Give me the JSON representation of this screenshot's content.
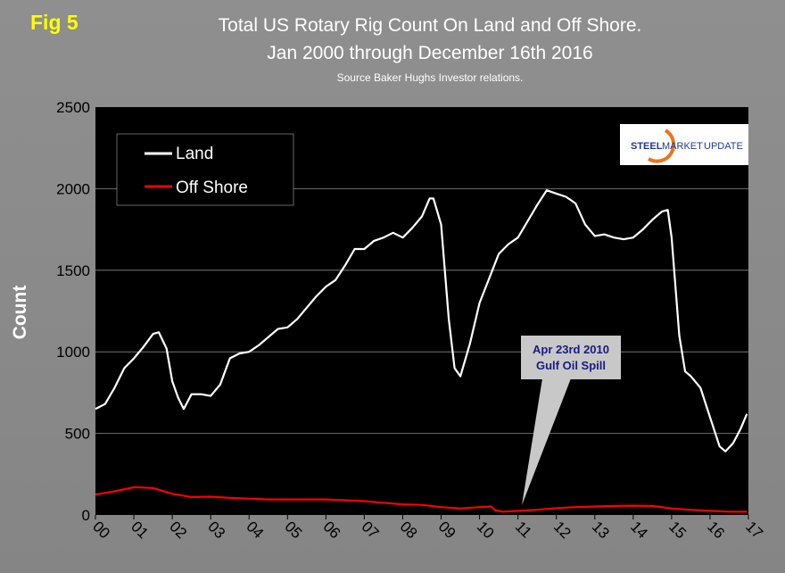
{
  "figure_label": "Fig 5",
  "chart_data": {
    "type": "line",
    "title": "Total US Rotary Rig Count On Land and Off Shore.",
    "subtitle": "Jan 2000 through December 16th 2016",
    "source": "Source Baker Hughs Investor relations.",
    "ylabel": "Count",
    "xlabel": "",
    "ylim": [
      0,
      2500
    ],
    "xlim": [
      2000,
      2017
    ],
    "yticks": [
      "0",
      "500",
      "1000",
      "1500",
      "2000",
      "2500"
    ],
    "xticks": [
      "00",
      "01",
      "02",
      "03",
      "04",
      "05",
      "06",
      "07",
      "08",
      "09",
      "10",
      "11",
      "12",
      "13",
      "14",
      "15",
      "16",
      "17"
    ],
    "grid": true,
    "legend": "top-left",
    "series": [
      {
        "name": "Land",
        "color": "#ffffff",
        "x": [
          2000.0,
          2000.25,
          2000.5,
          2000.75,
          2001.0,
          2001.25,
          2001.5,
          2001.65,
          2001.85,
          2002.0,
          2002.15,
          2002.3,
          2002.5,
          2002.75,
          2003.0,
          2003.25,
          2003.5,
          2003.75,
          2004.0,
          2004.25,
          2004.5,
          2004.75,
          2005.0,
          2005.25,
          2005.5,
          2005.75,
          2006.0,
          2006.25,
          2006.5,
          2006.75,
          2007.0,
          2007.25,
          2007.5,
          2007.75,
          2008.0,
          2008.25,
          2008.5,
          2008.7,
          2008.8,
          2009.0,
          2009.2,
          2009.35,
          2009.5,
          2009.75,
          2010.0,
          2010.25,
          2010.5,
          2010.75,
          2011.0,
          2011.25,
          2011.5,
          2011.75,
          2012.0,
          2012.25,
          2012.5,
          2012.75,
          2013.0,
          2013.25,
          2013.5,
          2013.75,
          2014.0,
          2014.25,
          2014.5,
          2014.75,
          2014.9,
          2015.0,
          2015.2,
          2015.35,
          2015.5,
          2015.75,
          2016.0,
          2016.25,
          2016.4,
          2016.6,
          2016.8,
          2016.96
        ],
        "values": [
          650,
          680,
          780,
          900,
          960,
          1030,
          1110,
          1120,
          1020,
          820,
          720,
          650,
          740,
          740,
          730,
          800,
          960,
          990,
          1000,
          1040,
          1090,
          1140,
          1150,
          1200,
          1270,
          1340,
          1400,
          1440,
          1530,
          1630,
          1630,
          1680,
          1700,
          1730,
          1700,
          1760,
          1830,
          1940,
          1940,
          1780,
          1200,
          900,
          850,
          1050,
          1300,
          1450,
          1600,
          1660,
          1700,
          1800,
          1900,
          1990,
          1970,
          1950,
          1910,
          1780,
          1710,
          1720,
          1700,
          1690,
          1700,
          1750,
          1810,
          1860,
          1870,
          1700,
          1100,
          880,
          850,
          780,
          600,
          420,
          390,
          440,
          530,
          620
        ]
      },
      {
        "name": "Off Shore",
        "color": "#ff0000",
        "x": [
          2000.0,
          2000.5,
          2001.0,
          2001.5,
          2002.0,
          2002.5,
          2003.0,
          2003.5,
          2004.0,
          2004.5,
          2005.0,
          2005.5,
          2006.0,
          2006.5,
          2007.0,
          2007.5,
          2008.0,
          2008.5,
          2009.0,
          2009.5,
          2010.0,
          2010.3,
          2010.4,
          2010.6,
          2011.0,
          2011.5,
          2012.0,
          2012.5,
          2013.0,
          2013.5,
          2014.0,
          2014.5,
          2015.0,
          2015.5,
          2016.0,
          2016.5,
          2016.96
        ],
        "values": [
          125,
          145,
          170,
          165,
          130,
          110,
          112,
          105,
          100,
          95,
          95,
          95,
          95,
          90,
          85,
          75,
          65,
          62,
          48,
          40,
          48,
          52,
          30,
          20,
          25,
          32,
          42,
          48,
          52,
          55,
          57,
          55,
          40,
          32,
          25,
          20,
          20
        ]
      }
    ],
    "annotations": [
      {
        "text": "Apr 23rd 2010",
        "x": 2010.3,
        "y": 30
      },
      {
        "text": "Gulf Oil Spill"
      }
    ]
  },
  "logo": {
    "word1": "STEEL",
    "word2": "MARKET",
    "word3": "UPDATE"
  }
}
